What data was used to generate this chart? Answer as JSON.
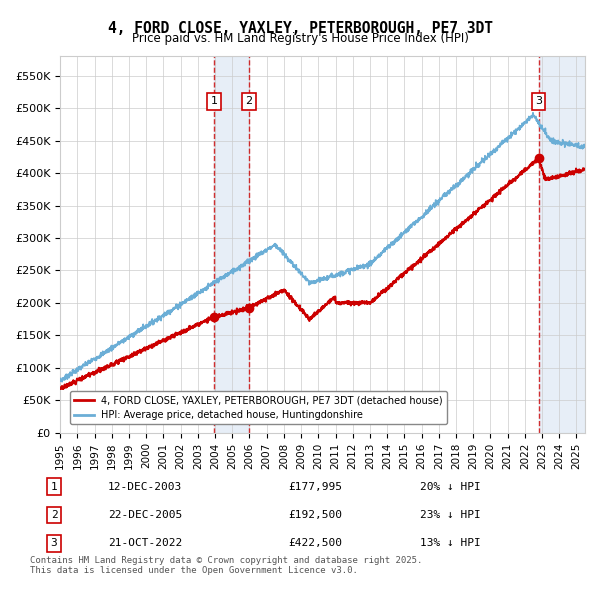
{
  "title": "4, FORD CLOSE, YAXLEY, PETERBOROUGH, PE7 3DT",
  "subtitle": "Price paid vs. HM Land Registry's House Price Index (HPI)",
  "title_fontsize": 11,
  "subtitle_fontsize": 9,
  "background_color": "#ffffff",
  "plot_bg_color": "#ffffff",
  "grid_color": "#cccccc",
  "hpi_color": "#6baed6",
  "price_color": "#cc0000",
  "ylim": [
    0,
    580000
  ],
  "yticks": [
    0,
    50000,
    100000,
    150000,
    200000,
    250000,
    300000,
    350000,
    400000,
    450000,
    500000,
    550000
  ],
  "ytick_labels": [
    "£0",
    "£50K",
    "£100K",
    "£150K",
    "£200K",
    "£250K",
    "£300K",
    "£350K",
    "£400K",
    "£450K",
    "£500K",
    "£550K"
  ],
  "xlabel": "",
  "legend_price_label": "4, FORD CLOSE, YAXLEY, PETERBOROUGH, PE7 3DT (detached house)",
  "legend_hpi_label": "HPI: Average price, detached house, Huntingdonshire",
  "transactions": [
    {
      "id": 1,
      "date": "12-DEC-2003",
      "price": 177995,
      "hpi_diff": "20% ↓ HPI",
      "year": 2003.95
    },
    {
      "id": 2,
      "date": "22-DEC-2005",
      "price": 192500,
      "hpi_diff": "23% ↓ HPI",
      "year": 2005.97
    },
    {
      "id": 3,
      "date": "21-OCT-2022",
      "price": 422500,
      "hpi_diff": "13% ↓ HPI",
      "year": 2022.8
    }
  ],
  "footer_text": "Contains HM Land Registry data © Crown copyright and database right 2025.\nThis data is licensed under the Open Government Licence v3.0.",
  "xstart": 1995.0,
  "xend": 2025.5
}
